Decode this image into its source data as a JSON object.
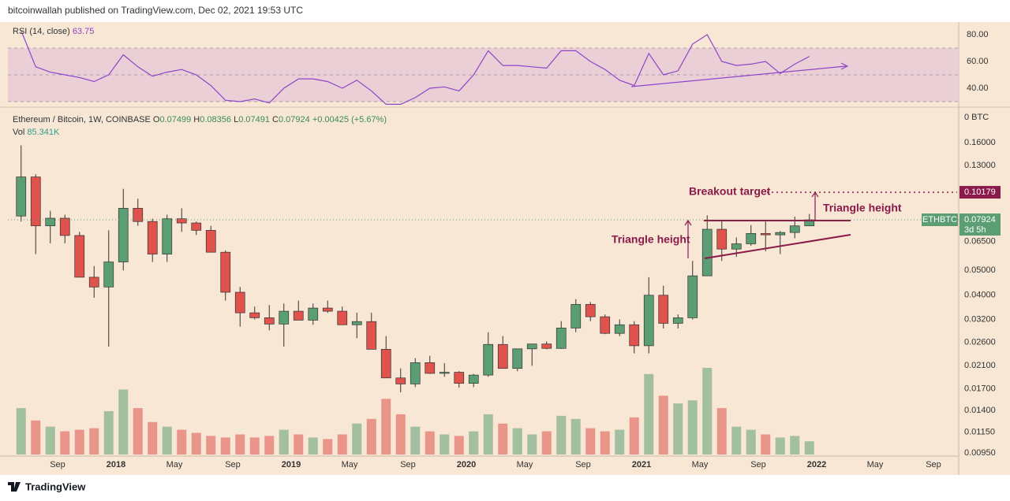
{
  "header": {
    "publisher": "bitcoinwallah published on TradingView.com, Dec 02, 2021 19:53 UTC"
  },
  "chart_data": {
    "type": "candlestick",
    "title": "Ethereum / Bitcoin, 1W, COINBASE",
    "ohlc_prefixes": [
      "O",
      "H",
      "L",
      "C"
    ],
    "change": {
      "value": 0.00425,
      "label": "+0.00425"
    },
    "change_percent": {
      "value": 5.67,
      "label": "(+5.67%)"
    },
    "categories": [
      null,
      null,
      null,
      "Sep",
      null,
      null,
      null,
      "2018",
      null,
      null,
      null,
      "May",
      null,
      null,
      null,
      "Sep",
      null,
      null,
      null,
      "2019",
      null,
      null,
      null,
      "May",
      null,
      null,
      null,
      "Sep",
      null,
      null,
      null,
      "2020",
      null,
      null,
      null,
      "May",
      null,
      null,
      null,
      "Sep",
      null,
      null,
      null,
      "2021",
      null,
      null,
      null,
      "May",
      null,
      null,
      null,
      "Sep",
      null,
      null,
      null,
      "2022",
      null,
      null,
      null,
      "May",
      null,
      null,
      null,
      "Sep",
      null
    ],
    "open": [
      0.082,
      0.117,
      0.075,
      0.0804,
      0.0687,
      0.047,
      0.043,
      0.054,
      0.088,
      0.078,
      0.058,
      0.08,
      0.077,
      0.072,
      0.059,
      0.041,
      0.034,
      0.0325,
      0.0307,
      0.0345,
      0.0318,
      0.0355,
      0.0345,
      0.0305,
      0.0314,
      0.0244,
      0.0188,
      0.0178,
      0.0216,
      0.0196,
      0.0198,
      0.0179,
      0.0193,
      0.0255,
      0.0205,
      0.0245,
      0.0256,
      0.0246,
      0.0296,
      0.0367,
      0.0328,
      0.0282,
      0.0305,
      0.0252,
      0.0399,
      0.0309,
      0.0325,
      0.0476,
      0.0727,
      0.0607,
      0.0637,
      0.07,
      0.0691,
      0.0706,
      0.07499,
      null,
      null,
      null,
      null,
      null,
      null,
      null,
      null,
      null,
      null
    ],
    "high": [
      0.156,
      0.12,
      0.086,
      0.083,
      0.071,
      0.052,
      0.072,
      0.105,
      0.096,
      0.08,
      0.083,
      0.088,
      0.078,
      0.075,
      0.06,
      0.043,
      0.036,
      0.0365,
      0.037,
      0.038,
      0.037,
      0.038,
      0.036,
      0.034,
      0.034,
      0.0275,
      0.0205,
      0.0225,
      0.023,
      0.0215,
      0.02,
      0.0195,
      0.0285,
      0.0275,
      0.0245,
      0.0255,
      0.0262,
      0.0315,
      0.0385,
      0.0375,
      0.0335,
      0.032,
      0.0315,
      0.047,
      0.0435,
      0.0335,
      0.0545,
      0.0825,
      0.0785,
      0.0675,
      0.0755,
      0.078,
      0.0715,
      0.0815,
      0.08356,
      null,
      null,
      null,
      null,
      null,
      null,
      null,
      null,
      null,
      null
    ],
    "low": [
      0.078,
      0.058,
      0.064,
      0.064,
      0.047,
      0.039,
      0.025,
      0.05,
      0.075,
      0.054,
      0.054,
      0.071,
      0.069,
      0.059,
      0.038,
      0.03,
      0.032,
      0.029,
      0.025,
      0.032,
      0.0305,
      0.034,
      0.0305,
      0.027,
      0.0245,
      0.019,
      0.0165,
      0.0173,
      0.0195,
      0.019,
      0.0172,
      0.0173,
      0.019,
      0.0205,
      0.02,
      0.021,
      0.0244,
      0.0245,
      0.0285,
      0.0315,
      0.028,
      0.0275,
      0.0235,
      0.0235,
      0.0295,
      0.0295,
      0.032,
      0.0475,
      0.0545,
      0.0565,
      0.0625,
      0.0595,
      0.058,
      0.067,
      0.07491,
      null,
      null,
      null,
      null,
      null,
      null,
      null,
      null,
      null,
      null
    ],
    "close": [
      0.117,
      0.075,
      0.0804,
      0.0687,
      0.047,
      0.043,
      0.054,
      0.088,
      0.078,
      0.058,
      0.08,
      0.077,
      0.072,
      0.059,
      0.041,
      0.034,
      0.0325,
      0.0307,
      0.0345,
      0.0318,
      0.0355,
      0.0345,
      0.0305,
      0.0314,
      0.0244,
      0.0188,
      0.0178,
      0.0216,
      0.0196,
      0.0198,
      0.0179,
      0.0193,
      0.0255,
      0.0205,
      0.0245,
      0.0256,
      0.0246,
      0.0296,
      0.0367,
      0.0328,
      0.0282,
      0.0305,
      0.0252,
      0.0399,
      0.0309,
      0.0325,
      0.0476,
      0.0727,
      0.0607,
      0.0637,
      0.07,
      0.0691,
      0.0706,
      0.07499,
      0.07924,
      null,
      null,
      null,
      null,
      null,
      null,
      null,
      null,
      null,
      null
    ],
    "up_color": "#5c9e74",
    "down_color": "#e0524c",
    "log_scale": true,
    "grid": false,
    "ylim": [
      0.0093,
      0.2146
    ],
    "yticks": [
      {
        "value": 0.16,
        "label": "0.16000"
      },
      {
        "value": 0.13,
        "label": "0.13000"
      },
      {
        "value": 0.065,
        "label": "0.06500"
      },
      {
        "value": 0.05,
        "label": "0.05000"
      },
      {
        "value": 0.04,
        "label": "0.04000"
      },
      {
        "value": 0.032,
        "label": "0.03200"
      },
      {
        "value": 0.026,
        "label": "0.02600"
      },
      {
        "value": 0.021,
        "label": "0.02100"
      },
      {
        "value": 0.017,
        "label": "0.01700"
      },
      {
        "value": 0.014,
        "label": "0.01400"
      },
      {
        "value": 0.0115,
        "label": "0.01150"
      },
      {
        "value": 0.0095,
        "label": "0.00950"
      }
    ],
    "axis_unit_label": "0 BTC",
    "symbol_tag": "ETHBTC",
    "countdown": "3d 5h",
    "breakout_target": 0.10179,
    "annotations": {
      "breakout": "Breakout target",
      "height_left": "Triangle height",
      "height_right": "Triangle height"
    },
    "volume": {
      "name": "Vol",
      "values": [
        300,
        220,
        180,
        150,
        160,
        170,
        280,
        420,
        300,
        210,
        180,
        160,
        140,
        120,
        110,
        130,
        110,
        120,
        160,
        130,
        110,
        100,
        130,
        200,
        230,
        360,
        260,
        180,
        150,
        130,
        120,
        150,
        260,
        200,
        170,
        130,
        150,
        250,
        230,
        170,
        150,
        160,
        240,
        520,
        380,
        330,
        350,
        560,
        300,
        180,
        160,
        130,
        110,
        120,
        85.341,
        null,
        null,
        null,
        null,
        null,
        null,
        null,
        null,
        null,
        null
      ],
      "last_label": "85.341K"
    },
    "rsi": {
      "name": "RSI (14, close)",
      "color": "#8e44c8",
      "values": [
        83,
        56,
        52,
        50,
        48,
        45,
        50,
        65,
        56,
        49,
        52,
        54,
        50,
        42,
        31,
        30,
        32,
        29,
        40,
        47,
        47,
        45,
        40,
        46,
        38,
        28,
        28,
        33,
        40,
        41,
        38,
        50,
        68,
        57,
        57,
        56,
        55,
        68,
        68,
        60,
        54,
        46,
        42,
        66,
        50,
        53,
        73,
        80,
        60,
        57,
        58,
        60,
        51,
        58,
        63.75,
        null,
        null,
        null,
        null,
        null,
        null,
        null,
        null,
        null,
        null
      ],
      "ylim": [
        27.65,
        88.24
      ],
      "yticks": [
        {
          "value": 80,
          "label": "80.00"
        },
        {
          "value": 60,
          "label": "60.00"
        },
        {
          "value": 40,
          "label": "40.00"
        }
      ],
      "band": [
        30,
        70
      ],
      "midline": 50
    }
  },
  "footer": {
    "brand": "TradingView"
  }
}
